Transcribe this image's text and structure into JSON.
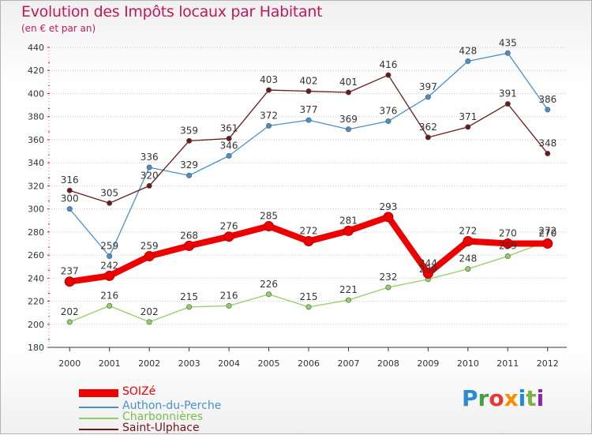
{
  "title": "Evolution des Impôts locaux par Habitant",
  "subtitle": "(en € et par an)",
  "logo": {
    "text": "Proxiti",
    "letters": [
      {
        "ch": "P",
        "color": "#2a8bd4"
      },
      {
        "ch": "r",
        "color": "#43a047"
      },
      {
        "ch": "o",
        "color": "#e53935"
      },
      {
        "ch": "x",
        "color": "#fb8c00"
      },
      {
        "ch": "i",
        "color": "#1e88e5"
      },
      {
        "ch": "t",
        "color": "#7cb342"
      },
      {
        "ch": "i",
        "color": "#8e24aa"
      }
    ]
  },
  "chart_data": {
    "type": "line",
    "title": "Evolution des Impôts locaux par Habitant",
    "subtitle": "(en € et par an)",
    "x": [
      "2000",
      "2001",
      "2002",
      "2003",
      "2004",
      "2005",
      "2006",
      "2007",
      "2008",
      "2009",
      "2010",
      "2011",
      "2012"
    ],
    "ylim": [
      180,
      440
    ],
    "yticks": [
      180,
      200,
      220,
      240,
      260,
      280,
      300,
      320,
      340,
      360,
      380,
      400,
      420,
      440
    ],
    "grid": "horizontal dotted",
    "legend_position": "bottom-left",
    "series": [
      {
        "name": "SOIZé",
        "color": "#ee0000",
        "width": "thick",
        "values": [
          237,
          242,
          259,
          268,
          276,
          285,
          272,
          281,
          293,
          244,
          272,
          270,
          270
        ]
      },
      {
        "name": "Authon-du-Perche",
        "color": "#4a90c8",
        "width": "thin",
        "values": [
          300,
          259,
          336,
          329,
          346,
          372,
          377,
          369,
          376,
          397,
          428,
          435,
          386
        ]
      },
      {
        "name": "Charbonnières",
        "color": "#90d060",
        "width": "thin",
        "values": [
          202,
          216,
          202,
          215,
          216,
          226,
          215,
          221,
          232,
          239,
          248,
          259,
          272
        ]
      },
      {
        "name": "Saint-Ulphace",
        "color": "#6b1a1a",
        "width": "thin",
        "values": [
          316,
          305,
          320,
          359,
          361,
          403,
          402,
          401,
          416,
          362,
          371,
          391,
          348
        ]
      }
    ],
    "data_labels": [
      [
        "237",
        "242",
        "259",
        "268",
        "276",
        "285",
        "272",
        "281",
        "293",
        "244",
        "272",
        "270",
        "270"
      ],
      [
        "300",
        "259",
        "336",
        "329",
        "346",
        "372",
        "377",
        "369",
        "376",
        "397",
        "428",
        "435",
        "386"
      ],
      [
        "202",
        "216",
        "202",
        "215",
        "216",
        "226",
        "215",
        "221",
        "232",
        "239",
        "248",
        "259",
        "272"
      ],
      [
        "316",
        "305",
        "320",
        "359",
        "361",
        "403",
        "402",
        "401",
        "416",
        "362",
        "371",
        "391",
        "348"
      ]
    ]
  }
}
